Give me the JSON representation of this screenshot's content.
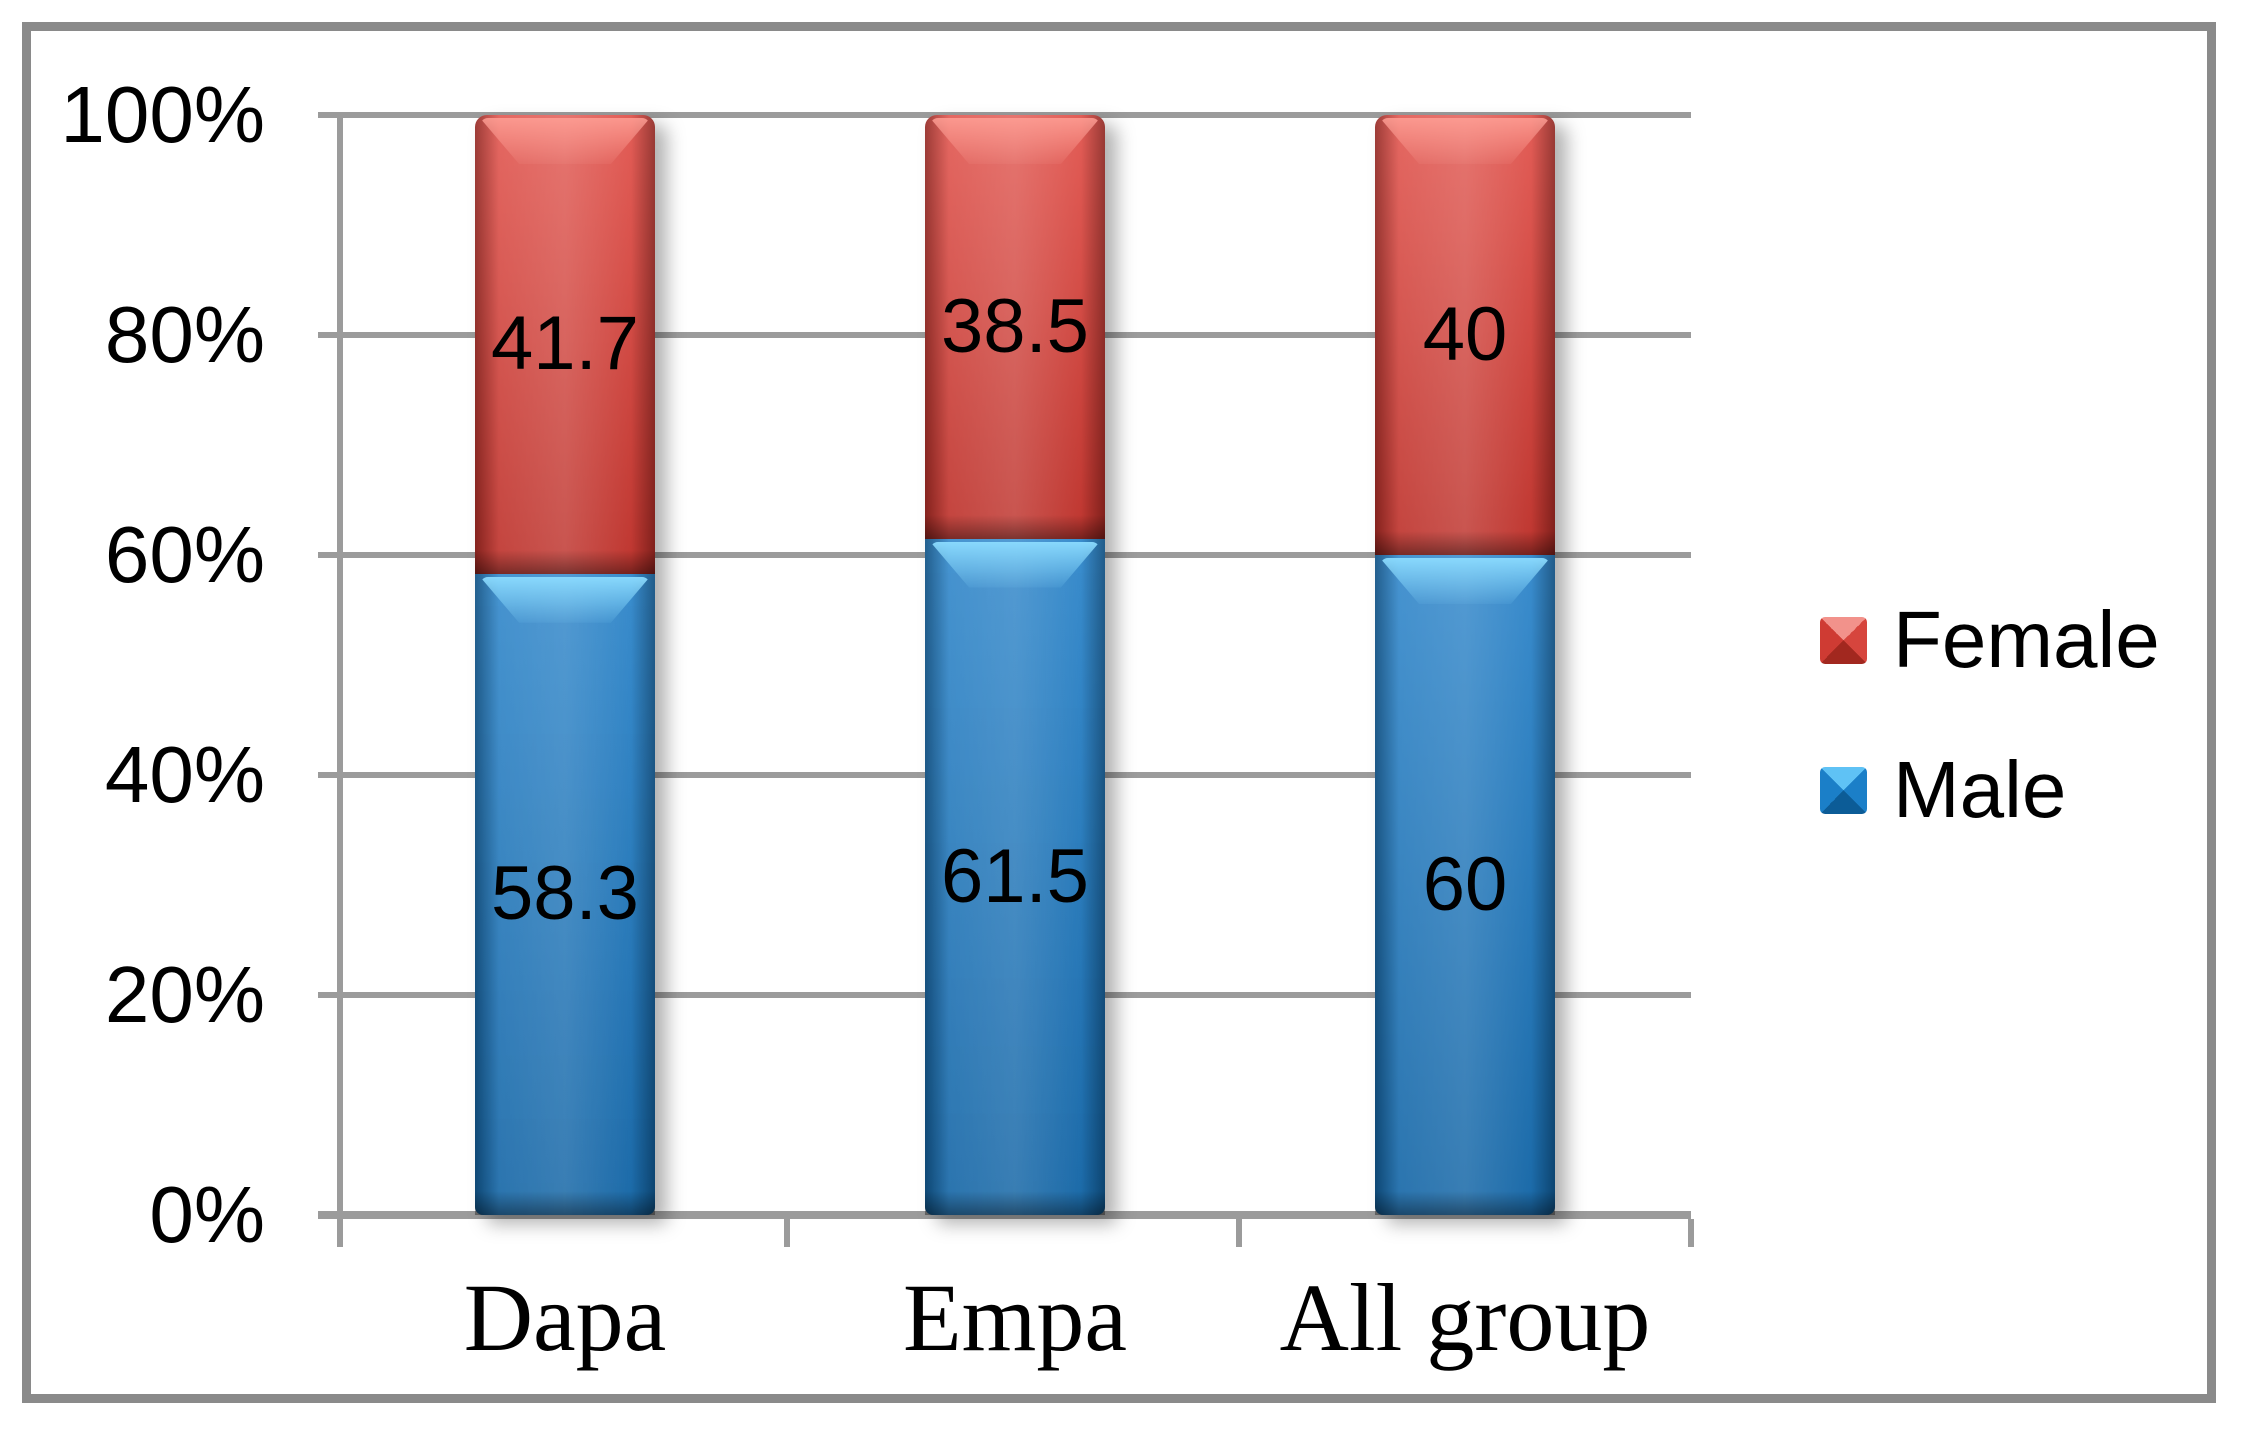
{
  "chart_data": {
    "type": "bar",
    "subtype": "100%-stacked-column",
    "title": "",
    "categories": [
      "Dapa",
      "Empa",
      "All group"
    ],
    "series": [
      {
        "name": "Male",
        "color": "#1577C4",
        "values": [
          58.3,
          61.5,
          60
        ],
        "labels": [
          "58.3",
          "61.5",
          "60"
        ]
      },
      {
        "name": "Female",
        "color": "#DC362E",
        "values": [
          41.7,
          38.5,
          40
        ],
        "labels": [
          "41.7",
          "38.5",
          "40"
        ]
      }
    ],
    "y_axis": {
      "min": 0,
      "max": 100,
      "unit": "%",
      "ticks": [
        "100%",
        "80%",
        "60%",
        "40%",
        "20%",
        "0%"
      ]
    },
    "legend": {
      "position": "right",
      "entries": [
        {
          "label": "Female",
          "color": "#DC362E"
        },
        {
          "label": "Male",
          "color": "#1577C4"
        }
      ]
    },
    "grid": true,
    "frame_color": "#8A8A8A",
    "gridline_color": "#9B9B9B",
    "label_text_color": "#000000"
  }
}
